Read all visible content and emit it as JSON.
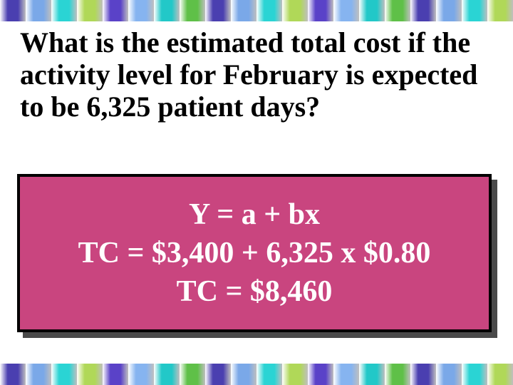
{
  "question": {
    "text": "What is the estimated total cost if the activity level for February is expected to be 6,325 patient days?"
  },
  "answer": {
    "line1": "Y = a + bx",
    "line2": "TC = $3,400 + 6,325 x $0.80",
    "line3": "TC = $8,460",
    "box_color": "#c9457f",
    "border_color": "#000000",
    "shadow_color": "#4a4a4a",
    "text_color": "#ffffff"
  },
  "border": {
    "segments": [
      "#4a3fb0",
      "#7aa8e8",
      "#2ad4d4",
      "#b0d858",
      "#5a42c8",
      "#86b4f0",
      "#22c8c8",
      "#5fc048",
      "#4a3fb0",
      "#7aa8e8",
      "#2ad4d4",
      "#b0d858",
      "#5a42c8",
      "#86b4f0",
      "#22c8c8",
      "#5fc048",
      "#4a3fb0",
      "#7aa8e8",
      "#2ad4d4",
      "#b0d858"
    ]
  }
}
